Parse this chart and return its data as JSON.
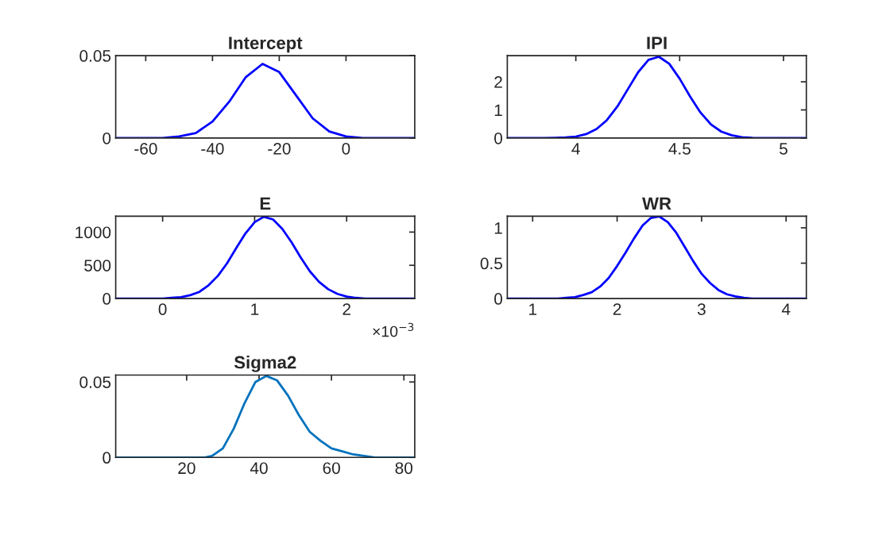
{
  "chart_data": [
    {
      "type": "line",
      "title": "Intercept",
      "color": "#0000ff",
      "xlim": [
        -69,
        20.6
      ],
      "ylim": [
        0,
        0.05
      ],
      "xticks": [
        -60,
        -40,
        -20,
        0
      ],
      "yticks": [
        0,
        0.05
      ],
      "x": [
        -69,
        -60,
        -55,
        -50,
        -45,
        -40,
        -35,
        -30,
        -25,
        -20,
        -15,
        -10,
        -5,
        0,
        5,
        10,
        20.6
      ],
      "values": [
        0,
        0,
        0,
        0.001,
        0.003,
        0.01,
        0.022,
        0.037,
        0.045,
        0.04,
        0.026,
        0.012,
        0.004,
        0.001,
        0,
        0,
        0
      ]
    },
    {
      "type": "line",
      "title": "IPI",
      "color": "#0000ff",
      "xlim": [
        3.67,
        5.11
      ],
      "ylim": [
        0,
        2.93
      ],
      "xticks": [
        4,
        4.5,
        5
      ],
      "yticks": [
        0,
        1,
        2
      ],
      "x": [
        3.67,
        3.8,
        3.85,
        3.9,
        3.95,
        4.0,
        4.05,
        4.1,
        4.15,
        4.2,
        4.25,
        4.3,
        4.35,
        4.4,
        4.45,
        4.5,
        4.55,
        4.6,
        4.65,
        4.7,
        4.75,
        4.8,
        4.85,
        4.9,
        4.95,
        5.0,
        5.11
      ],
      "values": [
        0,
        0,
        0,
        0.01,
        0.02,
        0.05,
        0.14,
        0.32,
        0.64,
        1.12,
        1.73,
        2.34,
        2.78,
        2.89,
        2.64,
        2.11,
        1.48,
        0.91,
        0.49,
        0.23,
        0.1,
        0.03,
        0.01,
        0,
        0,
        0,
        0
      ]
    },
    {
      "type": "line",
      "title": "E",
      "color": "#0000ff",
      "xlim": [
        -0.51,
        2.74
      ],
      "ylim": [
        0,
        1240
      ],
      "xticks": [
        0,
        1,
        2
      ],
      "yticks": [
        0,
        500,
        1000
      ],
      "annotations": [
        "×10$^{−3}$"
      ],
      "x": [
        -0.51,
        0.0,
        0.1,
        0.2,
        0.3,
        0.4,
        0.5,
        0.6,
        0.7,
        0.8,
        0.9,
        1.0,
        1.1,
        1.2,
        1.3,
        1.4,
        1.5,
        1.6,
        1.7,
        1.8,
        1.9,
        2.0,
        2.1,
        2.2,
        2.4,
        2.74
      ],
      "values": [
        0,
        0,
        10,
        20,
        50,
        100,
        200,
        340,
        530,
        760,
        980,
        1150,
        1230,
        1190,
        1050,
        850,
        620,
        410,
        250,
        140,
        70,
        30,
        10,
        0,
        0,
        0
      ]
    },
    {
      "type": "line",
      "title": "WR",
      "color": "#0000ff",
      "xlim": [
        0.7,
        4.24
      ],
      "ylim": [
        0,
        1.165
      ],
      "xticks": [
        1,
        2,
        3,
        4
      ],
      "yticks": [
        0,
        0.5,
        1
      ],
      "x": [
        0.7,
        1.1,
        1.3,
        1.4,
        1.5,
        1.6,
        1.7,
        1.8,
        1.9,
        2.0,
        2.1,
        2.2,
        2.3,
        2.4,
        2.5,
        2.6,
        2.7,
        2.8,
        2.9,
        3.0,
        3.1,
        3.2,
        3.3,
        3.4,
        3.5,
        3.6,
        3.8,
        4.24
      ],
      "values": [
        0,
        0,
        0,
        0.01,
        0.02,
        0.05,
        0.09,
        0.17,
        0.29,
        0.46,
        0.65,
        0.85,
        1.03,
        1.14,
        1.16,
        1.08,
        0.93,
        0.73,
        0.53,
        0.35,
        0.22,
        0.12,
        0.06,
        0.03,
        0.01,
        0,
        0,
        0
      ]
    },
    {
      "type": "line",
      "title": "Sigma2",
      "color": "#0072bd",
      "xlim": [
        0.4,
        83
      ],
      "ylim": [
        0,
        0.0546
      ],
      "xticks": [
        20,
        40,
        60,
        80
      ],
      "yticks": [
        0,
        0.05
      ],
      "x": [
        0.4,
        25,
        27,
        30,
        33,
        36,
        39,
        42,
        45,
        48,
        51,
        54,
        57,
        60,
        63,
        66,
        69,
        72,
        83
      ],
      "values": [
        0,
        0,
        0.001,
        0.006,
        0.019,
        0.036,
        0.05,
        0.054,
        0.051,
        0.041,
        0.028,
        0.017,
        0.011,
        0.006,
        0.004,
        0.002,
        0.001,
        0,
        0
      ]
    }
  ]
}
